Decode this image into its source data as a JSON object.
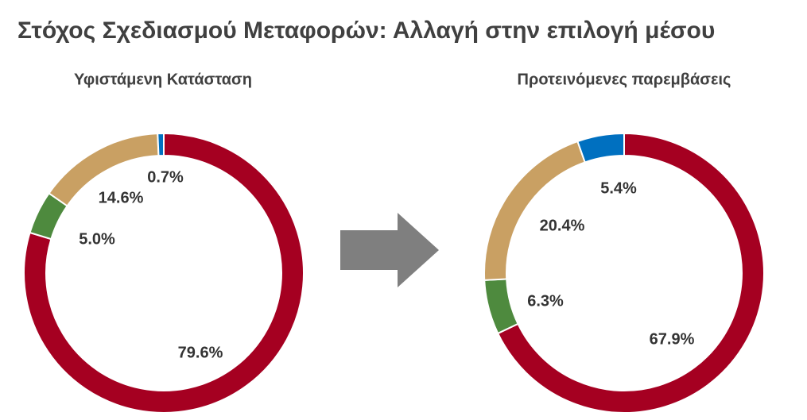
{
  "title": "Στόχος Σχεδιασμού Μεταφορών: Αλλαγή στην επιλογή μέσου",
  "chart_data": [
    {
      "type": "donut",
      "title": "Υφιστάμενη Κατάσταση",
      "values": [
        79.6,
        5.0,
        14.6,
        0.7
      ],
      "value_labels": [
        "79.6%",
        "5.0%",
        "14.6%",
        "0.7%"
      ],
      "colors": [
        "#a50021",
        "#4e8a3e",
        "#c9a063",
        "#0070c0"
      ]
    },
    {
      "type": "donut",
      "title": "Προτεινόμενες παρεμβάσεις",
      "values": [
        67.9,
        6.3,
        20.4,
        5.4
      ],
      "value_labels": [
        "67.9%",
        "6.3%",
        "20.4%",
        "5.4%"
      ],
      "colors": [
        "#a50021",
        "#4e8a3e",
        "#c9a063",
        "#0070c0"
      ]
    }
  ]
}
